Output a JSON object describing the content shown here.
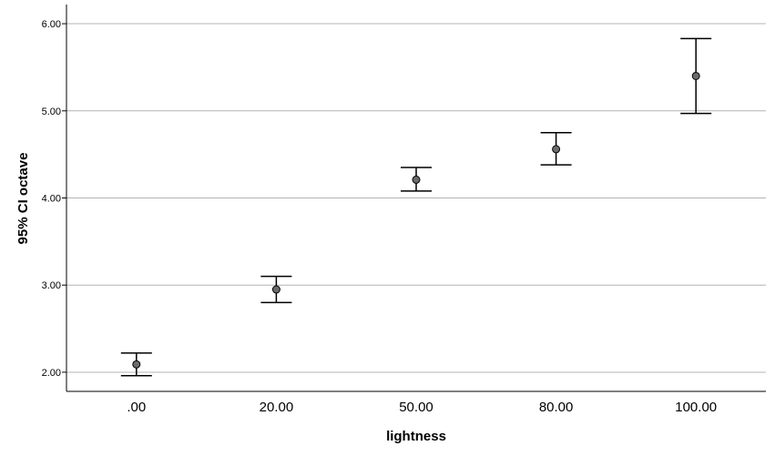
{
  "chart_data": {
    "type": "errorbar",
    "title": "",
    "xlabel": "lightness",
    "ylabel": "95% CI octave",
    "categories": [
      ".00",
      "20.00",
      "50.00",
      "80.00",
      "100.00"
    ],
    "means": [
      2.09,
      2.95,
      4.21,
      4.56,
      5.4
    ],
    "ci_lower": [
      1.96,
      2.8,
      4.08,
      4.38,
      4.97
    ],
    "ci_upper": [
      2.22,
      3.1,
      4.35,
      4.75,
      5.83
    ],
    "ylim": [
      1.78,
      6.22
    ],
    "yticks": [
      2.0,
      3.0,
      4.0,
      5.0,
      6.0
    ],
    "ytick_labels": [
      "2.00",
      "3.00",
      "4.00",
      "5.00",
      "6.00"
    ],
    "grid": "horizontal",
    "colors": {
      "marker_fill": "#6b6b6b",
      "line": "#000000",
      "grid": "#b4b4b4"
    }
  }
}
